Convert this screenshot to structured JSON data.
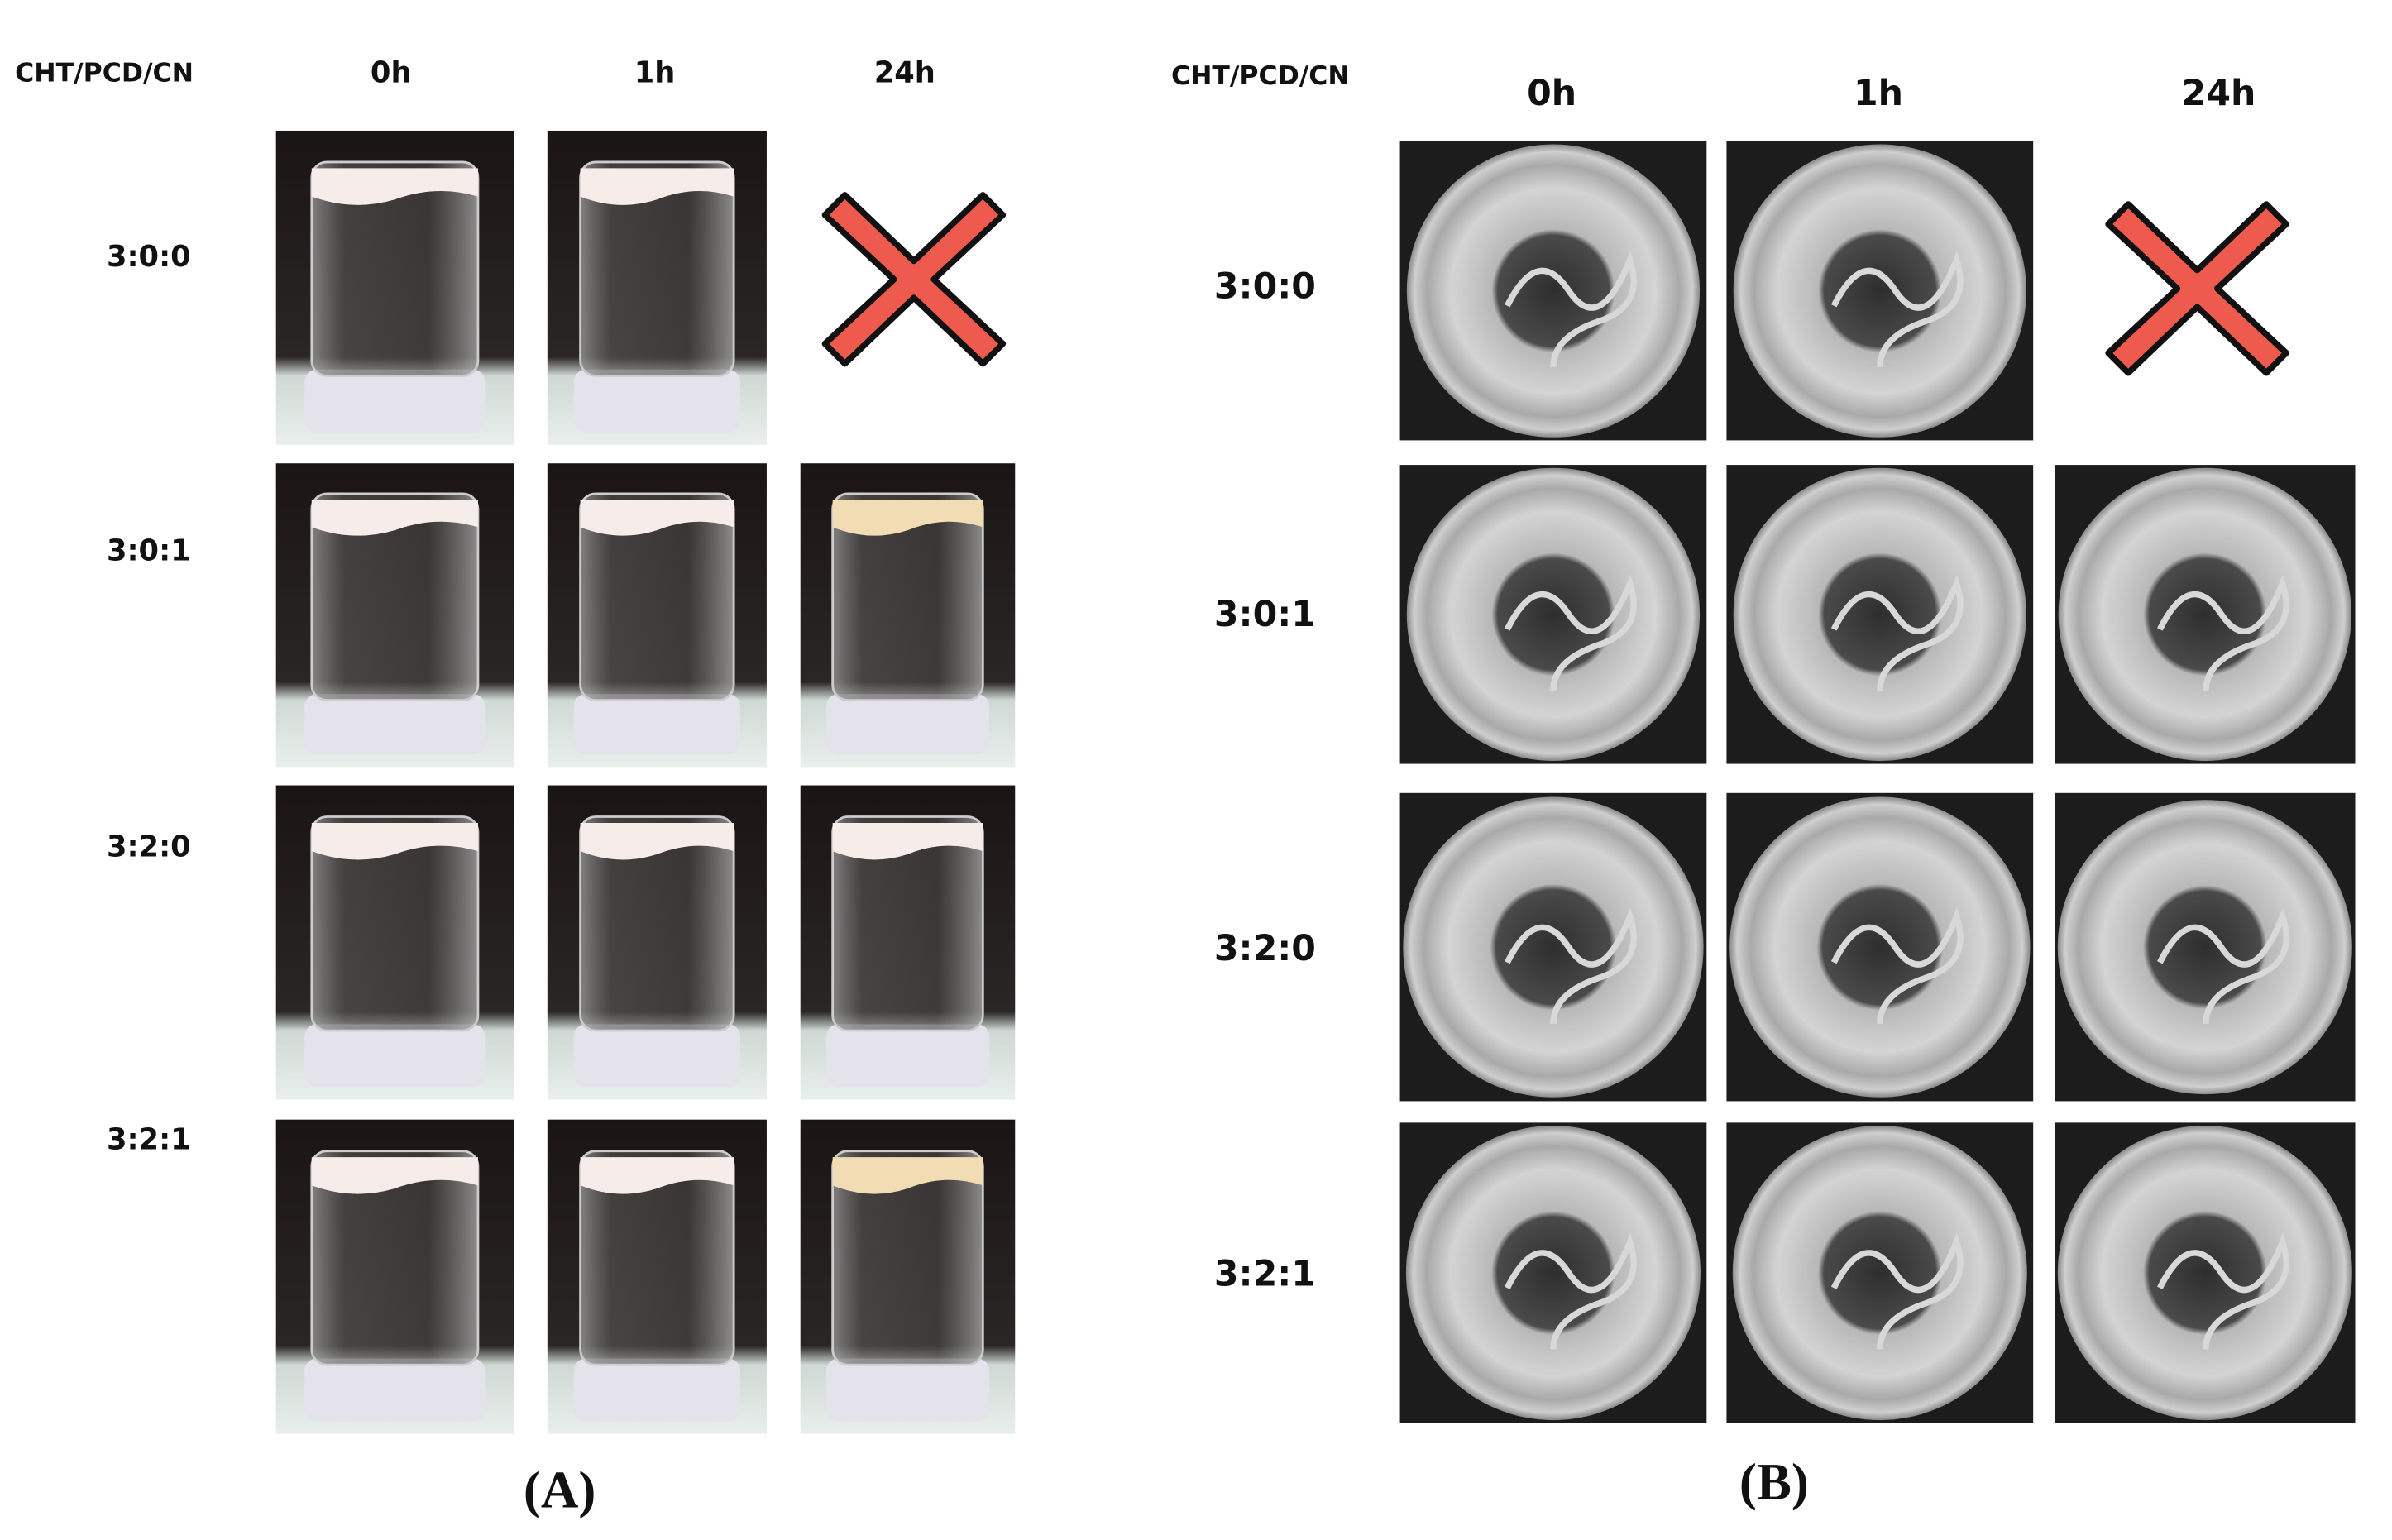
{
  "panels": [
    {
      "header": "CHT/PCD/CN",
      "columns": [
        "0h",
        "1h",
        "24h"
      ],
      "rows": [
        "3:0:0",
        "3:0:1",
        "3:2:0",
        "3:2:1"
      ],
      "caption": "(A)"
    },
    {
      "header": "CHT/PCD/CN",
      "columns": [
        "0h",
        "1h",
        "24h"
      ],
      "rows": [
        "3:0:0",
        "3:0:1",
        "3:2:0",
        "3:2:1"
      ],
      "caption": "(B)"
    }
  ]
}
